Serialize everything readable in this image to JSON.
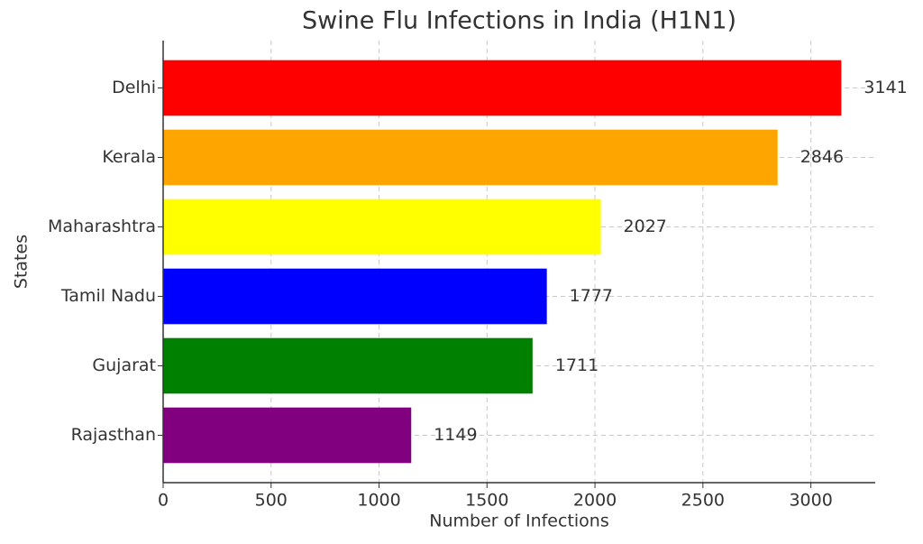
{
  "chart_data": {
    "type": "barh",
    "title": "Swine Flu Infections in India (H1N1)",
    "x_label": "Number of Infections",
    "y_label": "States",
    "categories": [
      "Delhi",
      "Kerala",
      "Maharashtra",
      "Tamil Nadu",
      "Gujarat",
      "Rajasthan"
    ],
    "values": [
      3141,
      2846,
      2027,
      1777,
      1711,
      1149
    ],
    "colors": [
      "#ff0000",
      "#ffa500",
      "#ffff00",
      "#0000ff",
      "#008000",
      "#800080"
    ],
    "xlim": [
      0,
      3298
    ],
    "xticks": [
      0,
      500,
      1000,
      1500,
      2000,
      2500,
      3000
    ],
    "grid": true
  }
}
